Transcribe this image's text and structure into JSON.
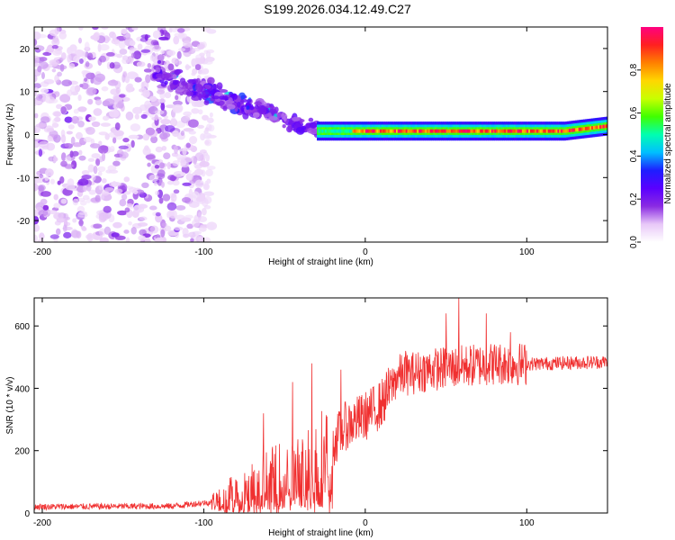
{
  "title": "S199.2026.034.12.49.C27",
  "chart_data": [
    {
      "type": "heatmap",
      "name": "spectrogram",
      "xlabel": "Height of straight line (km)",
      "ylabel": "Frequency (Hz)",
      "xlim": [
        -205,
        150
      ],
      "ylim": [
        -25,
        25
      ],
      "xticks": [
        -200,
        -100,
        0,
        100
      ],
      "yticks": [
        -20,
        -10,
        0,
        10,
        20
      ],
      "colorbar": {
        "label": "Normalized spectral amplitude",
        "range": [
          0,
          1
        ],
        "ticks": [
          "0.0",
          "0.2",
          "0.4",
          "0.6",
          "0.8"
        ],
        "tick_values": [
          0.0,
          0.2,
          0.4,
          0.6,
          0.8
        ],
        "colors": [
          "#ffffff",
          "#e8c8f8",
          "#8a2be2",
          "#5a00ff",
          "#1e1eff",
          "#00bfff",
          "#00ffb0",
          "#40ff00",
          "#c8ff00",
          "#ffd700",
          "#ff8000",
          "#ff2020",
          "#ff0080"
        ]
      },
      "features": {
        "carrier_start_km": -30,
        "carrier_freq_hz": 0.8,
        "carrier_end_freq_hz": 2.0,
        "carrier_amplitude": 0.9,
        "drift_start_km": -130,
        "drift_start_freq_hz": 14,
        "noise_region_km": [
          -205,
          -95
        ],
        "noise_freq_range_hz": [
          -25,
          25
        ]
      }
    },
    {
      "type": "line",
      "name": "snr",
      "xlabel": "Height of straight line (km)",
      "ylabel": "SNR (10 * v/v)",
      "xlim": [
        -205,
        150
      ],
      "ylim": [
        0,
        690
      ],
      "xticks": [
        -200,
        -100,
        0,
        100
      ],
      "yticks": [
        0,
        200,
        400,
        600
      ],
      "color": "#f03030",
      "trend": [
        {
          "x": -205,
          "y": 20
        },
        {
          "x": -120,
          "y": 22
        },
        {
          "x": -95,
          "y": 35
        },
        {
          "x": -80,
          "y": 70
        },
        {
          "x": -60,
          "y": 110
        },
        {
          "x": -40,
          "y": 130
        },
        {
          "x": -25,
          "y": 190
        },
        {
          "x": -12,
          "y": 280
        },
        {
          "x": 0,
          "y": 310
        },
        {
          "x": 10,
          "y": 350
        },
        {
          "x": 20,
          "y": 440
        },
        {
          "x": 40,
          "y": 460
        },
        {
          "x": 60,
          "y": 470
        },
        {
          "x": 80,
          "y": 480
        },
        {
          "x": 100,
          "y": 478
        },
        {
          "x": 150,
          "y": 485
        }
      ],
      "spikes": [
        {
          "x": -63,
          "y": 320
        },
        {
          "x": -45,
          "y": 420
        },
        {
          "x": -33,
          "y": 480
        },
        {
          "x": -15,
          "y": 460
        },
        {
          "x": 25,
          "y": 520
        },
        {
          "x": 50,
          "y": 640
        },
        {
          "x": 58,
          "y": 690
        },
        {
          "x": 75,
          "y": 640
        },
        {
          "x": 90,
          "y": 580
        }
      ]
    }
  ]
}
